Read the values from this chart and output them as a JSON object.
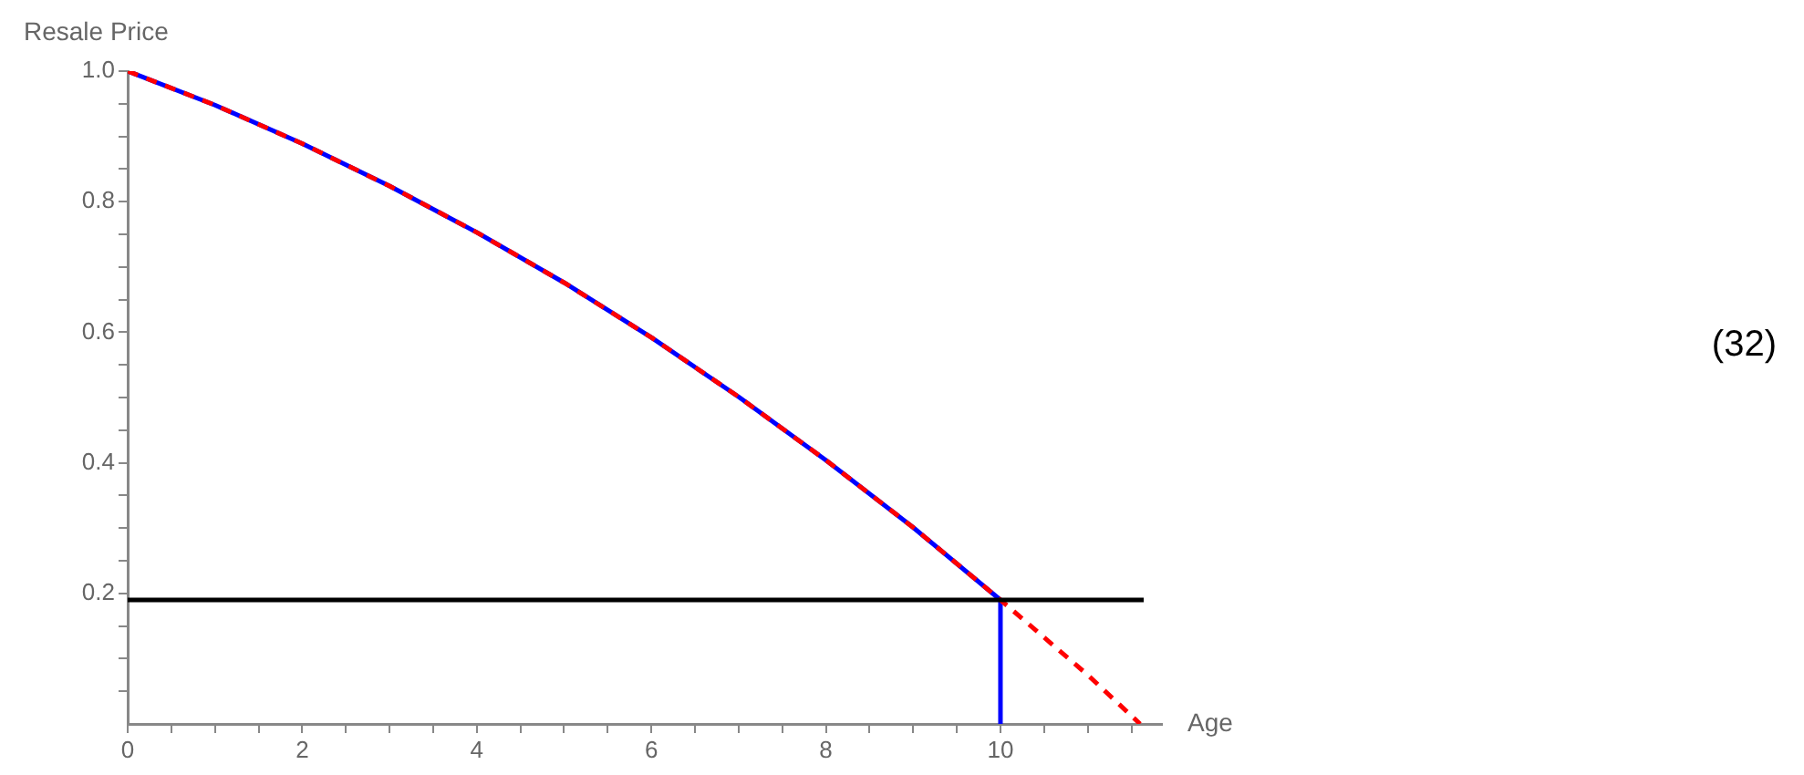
{
  "chart_data": {
    "type": "line",
    "xlabel": "Age",
    "ylabel": "Resale Price",
    "annotations": [
      "(32)"
    ],
    "xlim": [
      0,
      11.85
    ],
    "ylim": [
      0,
      1
    ],
    "xticks": [
      0,
      {
        "value": 0.5,
        "label": null
      },
      {
        "value": 1,
        "label": null
      },
      {
        "value": 1.5,
        "label": null
      },
      2,
      {
        "value": 2.5,
        "label": null
      },
      {
        "value": 3,
        "label": null
      },
      {
        "value": 3.5,
        "label": null
      },
      4,
      {
        "value": 4.5,
        "label": null
      },
      {
        "value": 5,
        "label": null
      },
      {
        "value": 5.5,
        "label": null
      },
      6,
      {
        "value": 6.5,
        "label": null
      },
      {
        "value": 7,
        "label": null
      },
      {
        "value": 7.5,
        "label": null
      },
      8,
      {
        "value": 8.5,
        "label": null
      },
      {
        "value": 9,
        "label": null
      },
      {
        "value": 9.5,
        "label": null
      },
      10,
      {
        "value": 10.5,
        "label": null
      },
      {
        "value": 11,
        "label": null
      },
      {
        "value": 11.5,
        "label": null
      }
    ],
    "yticks": [
      {
        "value": 0.05,
        "label": null
      },
      {
        "value": 0.1,
        "label": null
      },
      {
        "value": 0.15,
        "label": null
      },
      0.2,
      {
        "value": 0.25,
        "label": null
      },
      {
        "value": 0.3,
        "label": null
      },
      {
        "value": 0.35,
        "label": null
      },
      0.4,
      {
        "value": 0.45,
        "label": null
      },
      {
        "value": 0.5,
        "label": null
      },
      {
        "value": 0.55,
        "label": null
      },
      0.6,
      {
        "value": 0.65,
        "label": null
      },
      {
        "value": 0.7,
        "label": null
      },
      {
        "value": 0.75,
        "label": null
      },
      0.8,
      {
        "value": 0.85,
        "label": null
      },
      {
        "value": 0.9,
        "label": null
      },
      {
        "value": 0.95,
        "label": null
      },
      {
        "value": 1.0,
        "label": "1.0"
      }
    ],
    "grid": false,
    "marker": "none",
    "series": [
      {
        "color": "#0000ff",
        "line_style": "solid",
        "x": [
          0,
          1,
          2,
          3,
          4,
          5,
          6,
          7,
          8,
          9,
          10,
          10
        ],
        "values": [
          1,
          0.948,
          0.889,
          0.824,
          0.753,
          0.676,
          0.592,
          0.501,
          0.404,
          0.301,
          0.19,
          0
        ]
      },
      {
        "color": "#ff0000",
        "line_style": "dashed",
        "x": [
          0,
          1,
          2,
          3,
          4,
          5,
          6,
          7,
          8,
          9,
          10,
          11,
          11.6
        ],
        "values": [
          1,
          0.948,
          0.889,
          0.824,
          0.753,
          0.676,
          0.592,
          0.501,
          0.404,
          0.301,
          0.19,
          0.075,
          0
        ]
      }
    ],
    "ref_lines": [
      {
        "axis": "y",
        "value": 0.19,
        "color": "#000000"
      }
    ]
  }
}
